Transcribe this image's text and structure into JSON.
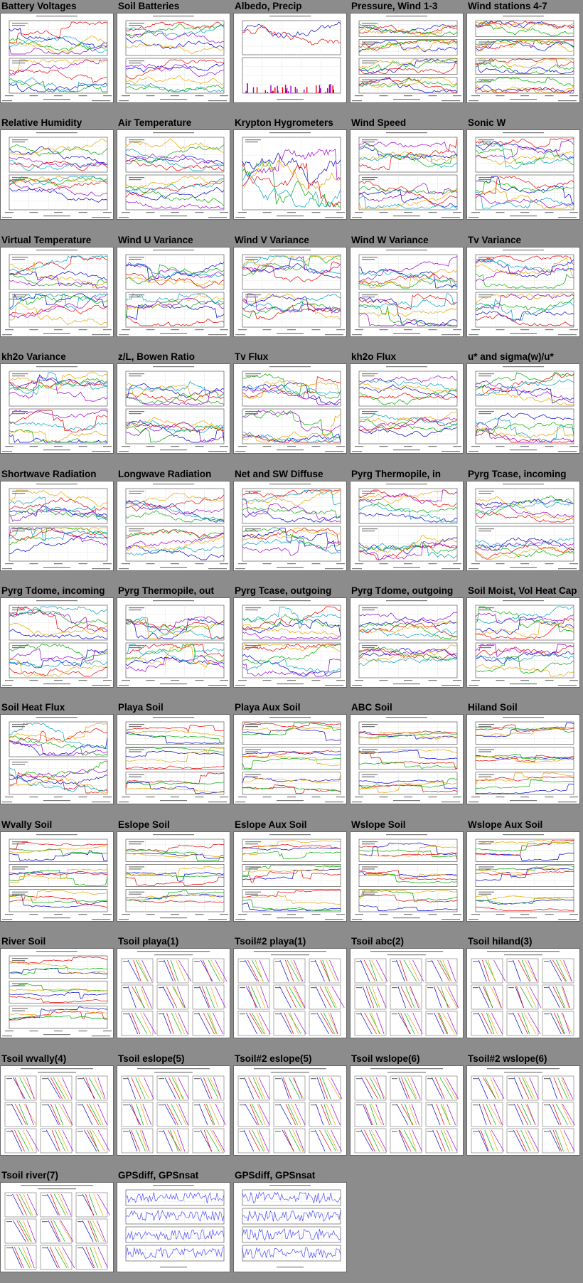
{
  "colors": {
    "page_bg": "#8c8c8c",
    "thumb_bg": "#ffffff",
    "palette": [
      "#0000cc",
      "#e60000",
      "#00aa00",
      "#e6a600",
      "#9900cc",
      "#00a0c0",
      "#666666",
      "#ff66aa",
      "#996633"
    ]
  },
  "tiles": [
    {
      "title": "Battery Voltages",
      "kind": "ts2"
    },
    {
      "title": "Soil Batteries",
      "kind": "ts2"
    },
    {
      "title": "Albedo, Precip",
      "kind": "albedo"
    },
    {
      "title": "Pressure, Wind 1-3",
      "kind": "ts4"
    },
    {
      "title": "Wind stations 4-7",
      "kind": "ts4"
    },
    {
      "title": "Relative Humidity",
      "kind": "ts2"
    },
    {
      "title": "Air Temperature",
      "kind": "ts2"
    },
    {
      "title": "Krypton Hygrometers",
      "kind": "ts1"
    },
    {
      "title": "Wind Speed",
      "kind": "ts2"
    },
    {
      "title": "Sonic W",
      "kind": "ts2"
    },
    {
      "title": "Virtual Temperature",
      "kind": "ts2"
    },
    {
      "title": "Wind U Variance",
      "kind": "ts2"
    },
    {
      "title": "Wind V Variance",
      "kind": "ts2"
    },
    {
      "title": "Wind W Variance",
      "kind": "ts2"
    },
    {
      "title": "Tv Variance",
      "kind": "ts2"
    },
    {
      "title": "kh2o Variance",
      "kind": "ts2"
    },
    {
      "title": "z/L, Bowen Ratio",
      "kind": "ts2"
    },
    {
      "title": "Tv Flux",
      "kind": "ts2"
    },
    {
      "title": "kh2o Flux",
      "kind": "ts2"
    },
    {
      "title": "u* and sigma(w)/u*",
      "kind": "ts2"
    },
    {
      "title": "Shortwave Radiation",
      "kind": "ts2"
    },
    {
      "title": "Longwave Radiation",
      "kind": "ts2"
    },
    {
      "title": "Net and SW Diffuse",
      "kind": "ts2"
    },
    {
      "title": "Pyrg Thermopile, in",
      "kind": "ts2"
    },
    {
      "title": "Pyrg Tcase, incoming",
      "kind": "ts2"
    },
    {
      "title": "Pyrg Tdome, incoming",
      "kind": "ts2"
    },
    {
      "title": "Pyrg Thermopile, out",
      "kind": "ts2"
    },
    {
      "title": "Pyrg Tcase, outgoing",
      "kind": "ts2"
    },
    {
      "title": "Pyrg Tdome, outgoing",
      "kind": "ts2"
    },
    {
      "title": "Soil Moist, Vol Heat Cap",
      "kind": "ts2"
    },
    {
      "title": "Soil Heat Flux",
      "kind": "ts2"
    },
    {
      "title": "Playa Soil",
      "kind": "ts3"
    },
    {
      "title": "Playa Aux Soil",
      "kind": "ts3"
    },
    {
      "title": "ABC Soil",
      "kind": "ts3"
    },
    {
      "title": "Hiland Soil",
      "kind": "ts3"
    },
    {
      "title": "Wvally Soil",
      "kind": "ts3"
    },
    {
      "title": "Eslope Soil",
      "kind": "ts3"
    },
    {
      "title": "Eslope Aux Soil",
      "kind": "ts3"
    },
    {
      "title": "Wslope Soil",
      "kind": "ts3"
    },
    {
      "title": "Wslope Aux Soil",
      "kind": "ts3"
    },
    {
      "title": "River Soil",
      "kind": "ts3"
    },
    {
      "title": "Tsoil playa(1)",
      "kind": "prof"
    },
    {
      "title": "Tsoil#2 playa(1)",
      "kind": "prof"
    },
    {
      "title": "Tsoil abc(2)",
      "kind": "prof"
    },
    {
      "title": "Tsoil hiland(3)",
      "kind": "prof"
    },
    {
      "title": "Tsoil wvally(4)",
      "kind": "prof"
    },
    {
      "title": "Tsoil eslope(5)",
      "kind": "prof"
    },
    {
      "title": "Tsoil#2 eslope(5)",
      "kind": "prof"
    },
    {
      "title": "Tsoil wslope(6)",
      "kind": "prof"
    },
    {
      "title": "Tsoil#2 wslope(6)",
      "kind": "prof"
    },
    {
      "title": "Tsoil river(7)",
      "kind": "prof"
    },
    {
      "title": "GPSdiff, GPSnsat",
      "kind": "gps"
    },
    {
      "title": "GPSdiff, GPSnsat",
      "kind": "gps"
    }
  ]
}
